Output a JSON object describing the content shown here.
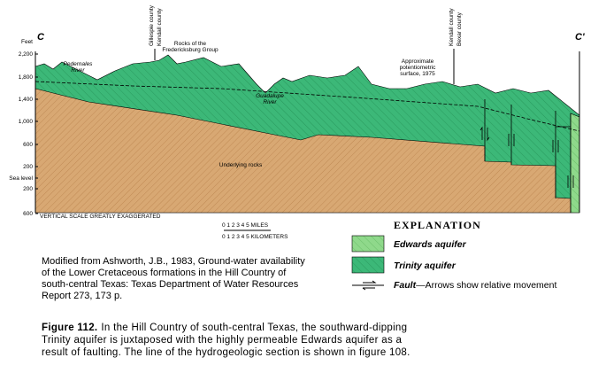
{
  "section": {
    "label_left": "C",
    "label_right": "C'",
    "feet_label": "Feet",
    "elevation_labels": [
      "2,200",
      "1,800",
      "1,400",
      "1,000",
      "600",
      "200",
      "Sea level",
      "200",
      "600"
    ],
    "county_labels_left": [
      "Gillespie county",
      "Kendall county"
    ],
    "county_labels_right": [
      "Kendall county",
      "Bexar county"
    ],
    "fredericksburg": [
      "Rocks of the",
      "Fredericksburg Group"
    ],
    "pedernales": [
      "Pedernales",
      "River"
    ],
    "guadalupe": [
      "Guadalupe",
      "River"
    ],
    "potentiometric": [
      "Approximate",
      "potentiometric",
      "surface, 1975"
    ],
    "underlying": "Underlying rocks",
    "vertical_scale": "VERTICAL SCALE GREATLY EXAGGERATED",
    "scale_miles": "0  1  2  3  4  5  MILES",
    "scale_km": "0 1 2 3 4 5 KILOMETERS"
  },
  "explanation": {
    "title": "EXPLANATION",
    "edwards": "Edwards aquifer",
    "trinity": "Trinity aquifer",
    "fault_bold": "Fault",
    "fault_text": "—Arrows show relative movement"
  },
  "citation": [
    "Modified from Ashworth, J.B., 1983, Ground-water availability",
    "of the Lower Cretaceous formations in the Hill Country of",
    "south-central Texas: Texas Department of Water Resources",
    "Report 273, 173 p."
  ],
  "caption": {
    "label": "Figure 112.",
    "lines": [
      "In the Hill Country of south-central Texas, the southward-dipping",
      "Trinity aquifer is juxtaposed with the highly permeable Edwards aquifer as a",
      "result of faulting. The line of the hydrogeologic section is shown in figure 108."
    ]
  }
}
